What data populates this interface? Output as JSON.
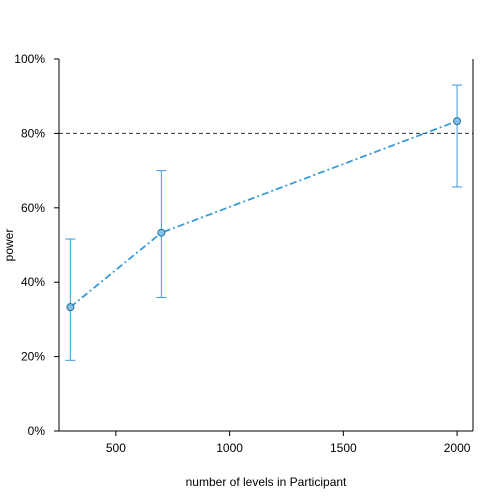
{
  "chart_data": {
    "type": "line",
    "title": "",
    "xlabel": "number of levels in Participant",
    "ylabel": "power",
    "xlim": [
      250,
      2070
    ],
    "ylim": [
      0,
      100
    ],
    "x_ticks": [
      500,
      1000,
      1500,
      2000
    ],
    "x_tick_labels": [
      "500",
      "1000",
      "1500",
      "2000"
    ],
    "y_ticks": [
      0,
      20,
      40,
      60,
      80,
      100
    ],
    "y_tick_labels": [
      "0%",
      "20%",
      "40%",
      "60%",
      "80%",
      "100%"
    ],
    "grid": false,
    "reference_line": {
      "y": 80,
      "style": "dashed",
      "color": "#333333"
    },
    "series": [
      {
        "x": [
          300,
          700,
          2000
        ],
        "y": [
          33.3,
          53.3,
          83.3
        ],
        "error_low": [
          19.0,
          35.9,
          65.6
        ],
        "error_high": [
          51.6,
          70.0,
          93.0
        ],
        "color": "#3a9ad9",
        "line_style": "dashdot",
        "marker": "circle"
      }
    ]
  }
}
